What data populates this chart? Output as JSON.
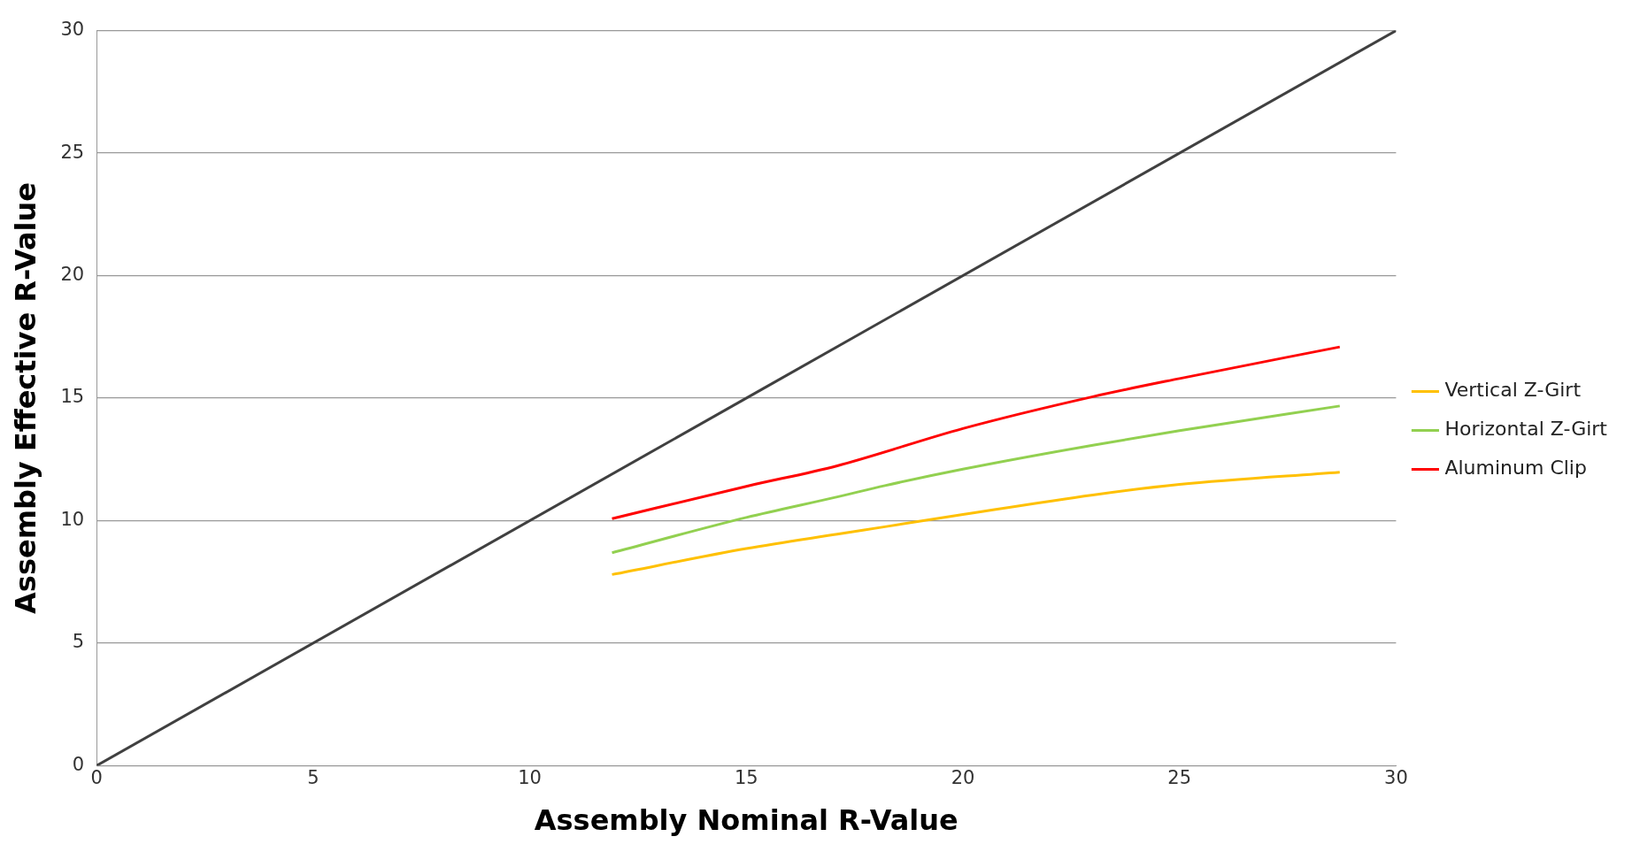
{
  "chart_data": {
    "type": "line",
    "xlabel": "Assembly Nominal R-Value",
    "ylabel": "Assembly Effective R-Value",
    "xlim": [
      0,
      30
    ],
    "ylim": [
      0,
      30
    ],
    "xticks": [
      0,
      5,
      10,
      15,
      20,
      25,
      30
    ],
    "yticks": [
      0,
      5,
      10,
      15,
      20,
      25,
      30
    ],
    "grid": "y",
    "legend": "right",
    "marker": "none",
    "line_style": "solid",
    "series": [
      {
        "name": "Vertical Z-Girt",
        "color": "#ffc000",
        "x": [
          11.9,
          15,
          17.1,
          18.2,
          20,
          23,
          25,
          28.7
        ],
        "values": [
          7.8,
          8.86,
          9.45,
          9.75,
          10.25,
          11.05,
          11.48,
          11.98
        ]
      },
      {
        "name": "Horizontal Z-Girt",
        "color": "#92d050",
        "x": [
          11.9,
          15,
          17.1,
          18.2,
          20,
          23,
          25,
          28.7
        ],
        "values": [
          8.69,
          10.13,
          10.97,
          11.43,
          12.1,
          13.08,
          13.67,
          14.68
        ]
      },
      {
        "name": "Aluminum Clip",
        "color": "#ff0000",
        "x": [
          11.9,
          15,
          17.1,
          20,
          23,
          25,
          28.7
        ],
        "values": [
          10.08,
          11.4,
          12.24,
          13.76,
          15.06,
          15.8,
          17.09
        ]
      },
      {
        "color": "#404040",
        "x": [
          0,
          30
        ],
        "values": [
          0,
          30
        ]
      }
    ]
  }
}
